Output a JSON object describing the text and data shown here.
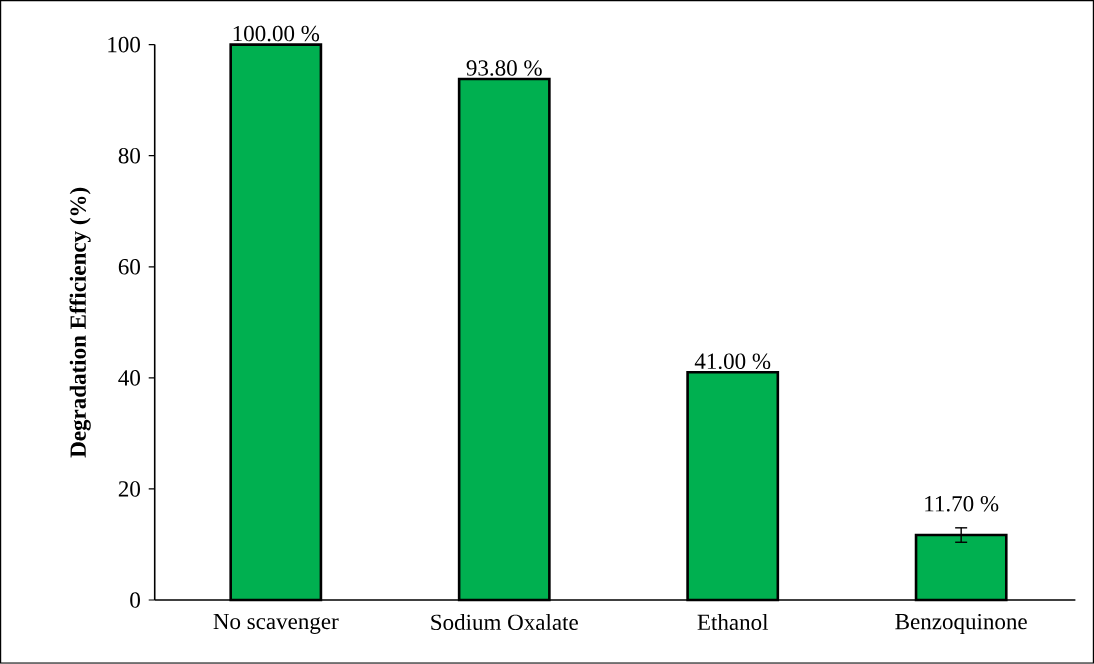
{
  "chart_data": {
    "type": "bar",
    "ylabel": "Degradation Efficiency (%)",
    "categories": [
      "No scavenger",
      "Sodium Oxalate",
      "Ethanol",
      "Benzoquinone"
    ],
    "values": [
      100,
      93.8,
      41,
      11.7
    ],
    "errors": [
      null,
      null,
      null,
      1.3
    ],
    "value_labels": [
      "100.00 %",
      "93.80 %",
      "41.00 %",
      "11.70 %"
    ],
    "color": "#00b050",
    "ylim": [
      0,
      100
    ],
    "yticks": [
      0,
      20,
      40,
      60,
      80,
      100
    ]
  }
}
